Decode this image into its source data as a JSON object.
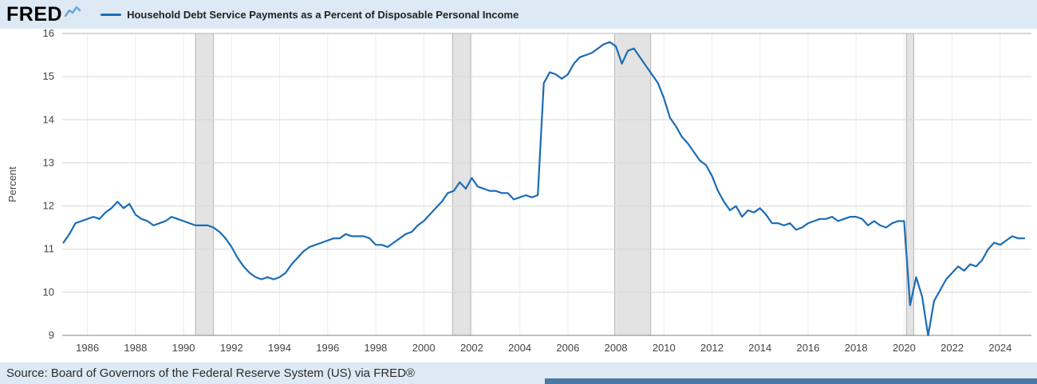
{
  "header": {
    "logo_text": "FRED",
    "legend_label": "Household Debt Service Payments as a Percent of Disposable Personal Income"
  },
  "footer": {
    "source_text": "Source: Board of Governors of the Federal Reserve System (US) via FRED®"
  },
  "chart_data": {
    "type": "line",
    "title": "Household Debt Service Payments as a Percent of Disposable Personal Income",
    "xlabel": "",
    "ylabel": "Percent",
    "xlim": [
      1984.95,
      2025.3
    ],
    "ylim": [
      9,
      16
    ],
    "x_ticks": [
      1986,
      1988,
      1990,
      1992,
      1994,
      1996,
      1998,
      2000,
      2002,
      2004,
      2006,
      2008,
      2010,
      2012,
      2014,
      2016,
      2018,
      2020,
      2022,
      2024
    ],
    "y_ticks": [
      9,
      10,
      11,
      12,
      13,
      14,
      15,
      16
    ],
    "grid": true,
    "legend_position": "top",
    "colors": {
      "line": "#1b6cb5",
      "recession": "#e3e3e3",
      "recession_edge": "#b4b4b4",
      "grid_h": "#d8d8d8",
      "grid_v": "#ececec",
      "grid_top": "#b5b5b5",
      "axis": "#808080",
      "background": "#ffffff",
      "page_background": "#dde9f4"
    },
    "recessions": [
      [
        1990.5,
        1991.25
      ],
      [
        2001.2,
        2001.95
      ],
      [
        2007.95,
        2009.45
      ],
      [
        2020.1,
        2020.4
      ]
    ],
    "series": [
      {
        "name": "Household Debt Service Payments as a Percent of Disposable Personal Income",
        "color": "#1b6cb5",
        "units": "Percent",
        "frequency": "Quarterly",
        "start_year": 1985,
        "period_years": 0.25,
        "values": [
          11.15,
          11.35,
          11.6,
          11.65,
          11.7,
          11.75,
          11.7,
          11.85,
          11.95,
          12.1,
          11.95,
          12.05,
          11.8,
          11.7,
          11.65,
          11.55,
          11.6,
          11.65,
          11.75,
          11.7,
          11.65,
          11.6,
          11.55,
          11.55,
          11.55,
          11.5,
          11.4,
          11.25,
          11.05,
          10.8,
          10.6,
          10.45,
          10.35,
          10.3,
          10.35,
          10.3,
          10.35,
          10.45,
          10.65,
          10.8,
          10.95,
          11.05,
          11.1,
          11.15,
          11.2,
          11.25,
          11.25,
          11.35,
          11.3,
          11.3,
          11.3,
          11.25,
          11.1,
          11.1,
          11.05,
          11.15,
          11.25,
          11.35,
          11.4,
          11.55,
          11.65,
          11.8,
          11.95,
          12.1,
          12.3,
          12.35,
          12.55,
          12.4,
          12.65,
          12.45,
          12.4,
          12.35,
          12.35,
          12.3,
          12.3,
          12.15,
          12.2,
          12.25,
          12.2,
          12.25,
          14.85,
          15.1,
          15.05,
          14.95,
          15.05,
          15.3,
          15.45,
          15.5,
          15.55,
          15.65,
          15.75,
          15.8,
          15.7,
          15.3,
          15.6,
          15.65,
          15.45,
          15.25,
          15.05,
          14.85,
          14.5,
          14.05,
          13.85,
          13.6,
          13.45,
          13.25,
          13.05,
          12.95,
          12.7,
          12.35,
          12.1,
          11.9,
          12.0,
          11.75,
          11.9,
          11.85,
          11.95,
          11.8,
          11.6,
          11.6,
          11.55,
          11.6,
          11.45,
          11.5,
          11.6,
          11.65,
          11.7,
          11.7,
          11.75,
          11.65,
          11.7,
          11.75,
          11.75,
          11.7,
          11.55,
          11.65,
          11.55,
          11.5,
          11.6,
          11.65,
          11.65,
          9.7,
          10.35,
          9.9,
          9.0,
          9.8,
          10.05,
          10.3,
          10.45,
          10.6,
          10.5,
          10.65,
          10.6,
          10.75,
          11.0,
          11.15,
          11.1,
          11.2,
          11.3,
          11.25,
          11.25
        ]
      }
    ]
  }
}
